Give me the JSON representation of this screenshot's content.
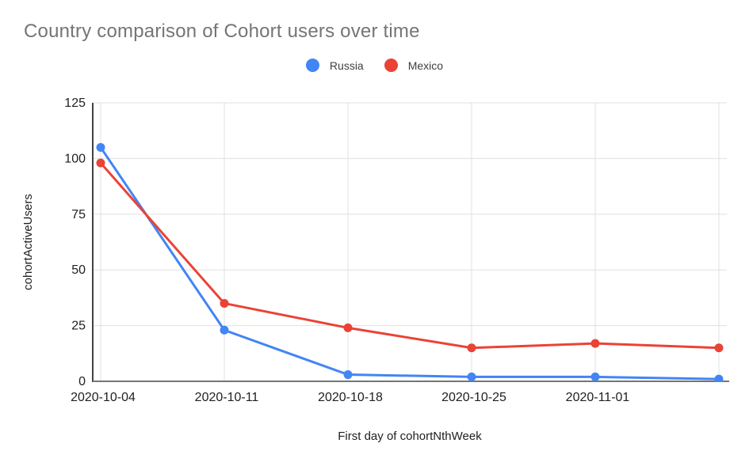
{
  "page": {
    "background": "#ffffff"
  },
  "chart_data": {
    "type": "line",
    "title": "Country comparison of Cohort users over time",
    "xlabel": "First day of cohortNthWeek",
    "ylabel": "cohortActiveUsers",
    "categories": [
      "2020-10-04",
      "2020-10-11",
      "2020-10-18",
      "2020-10-25",
      "2020-11-01",
      ""
    ],
    "series": [
      {
        "name": "Russia",
        "color": "#4285F4",
        "values": [
          105,
          23,
          3,
          2,
          2,
          1
        ]
      },
      {
        "name": "Mexico",
        "color": "#EA4335",
        "values": [
          98,
          35,
          24,
          15,
          17,
          15
        ]
      }
    ],
    "ylim": [
      0,
      125
    ],
    "yticks": [
      0,
      25,
      50,
      75,
      100,
      125
    ],
    "grid": true,
    "legend_position": "top",
    "colors": {
      "title_text": "#757575",
      "axis_text": "#202124",
      "gridline": "#e0e0e0",
      "y_axis_line": "#424242",
      "x_axis_line": "#757575"
    }
  }
}
